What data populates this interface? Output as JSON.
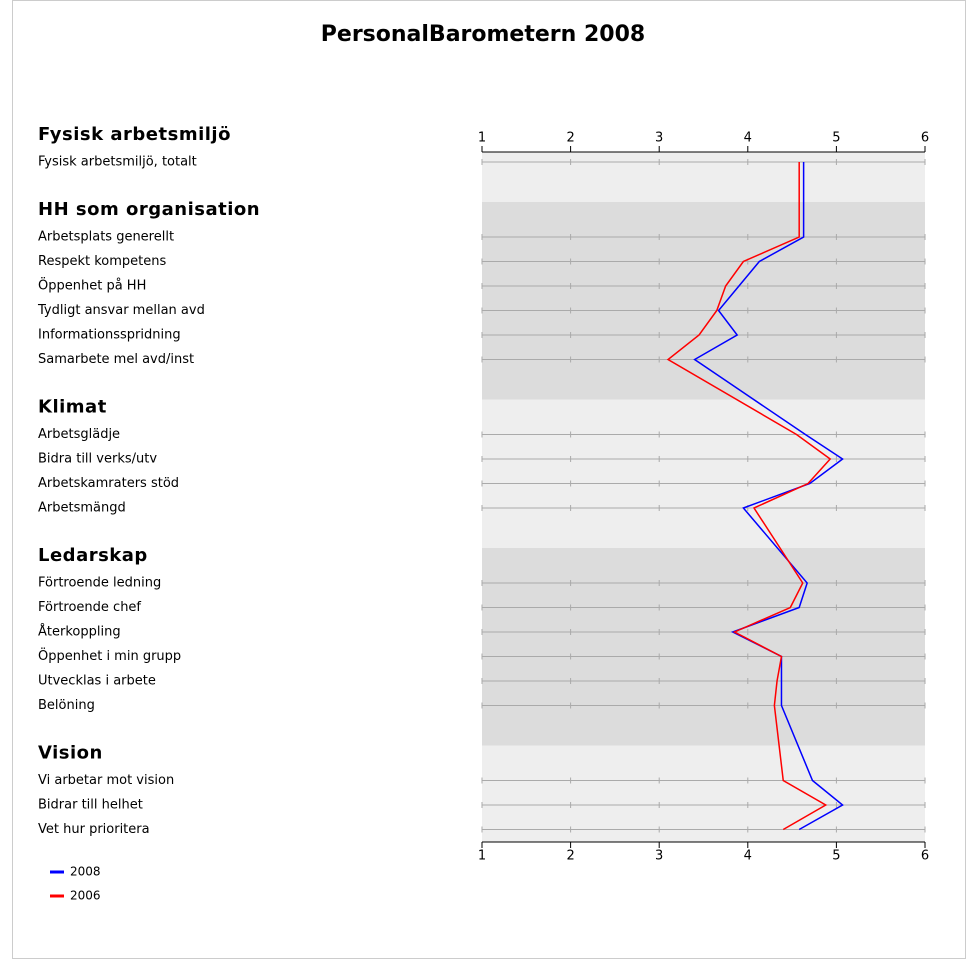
{
  "chart_data": {
    "type": "line",
    "title": "PersonalBarometern 2008",
    "groups": [
      {
        "name": "Fysisk arbetsmiljö",
        "categories": [
          "Fysisk arbetsmiljö, totalt"
        ]
      },
      {
        "name": "HH som organisation",
        "categories": [
          "Arbetsplats generellt",
          "Respekt kompetens",
          "Öppenhet på HH",
          "Tydligt ansvar mellan avd",
          "Informationsspridning",
          "Samarbete mel avd/inst"
        ]
      },
      {
        "name": "Klimat",
        "categories": [
          "Arbetsglädje",
          "Bidra till verks/utv",
          "Arbetskamraters stöd",
          "Arbetsmängd"
        ]
      },
      {
        "name": "Ledarskap",
        "categories": [
          "Förtroende ledning",
          "Förtroende chef",
          "Återkoppling",
          "Öppenhet i min grupp",
          "Utvecklas i arbete",
          "Belöning"
        ]
      },
      {
        "name": "Vision",
        "categories": [
          "Vi arbetar mot vision",
          "Bidrar till helhet",
          "Vet hur prioritera"
        ]
      }
    ],
    "series": [
      {
        "name": "2008",
        "color": "#0000ff",
        "values": [
          4.63,
          4.63,
          4.13,
          3.9,
          3.67,
          3.88,
          3.4,
          4.65,
          5.07,
          4.7,
          3.95,
          4.67,
          4.58,
          3.83,
          4.38,
          4.38,
          4.38,
          4.73,
          5.07,
          4.58
        ]
      },
      {
        "name": "2006",
        "color": "#ff0000",
        "values": [
          4.58,
          4.58,
          3.95,
          3.75,
          3.65,
          3.45,
          3.1,
          4.55,
          4.93,
          4.68,
          4.07,
          4.62,
          4.48,
          3.85,
          4.38,
          4.33,
          4.3,
          4.4,
          4.88,
          4.4
        ]
      }
    ],
    "xlim": [
      1,
      6
    ],
    "xticks": [
      1,
      2,
      3,
      4,
      5,
      6
    ]
  }
}
